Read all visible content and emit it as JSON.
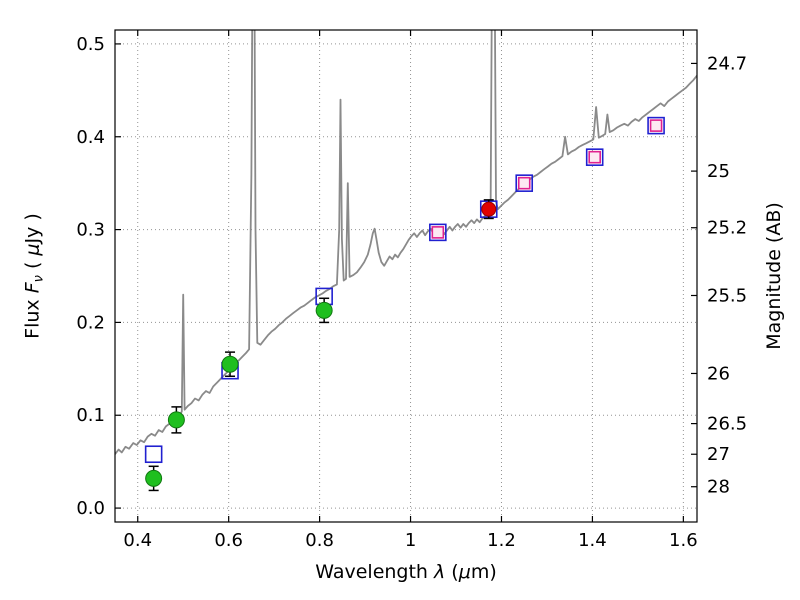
{
  "figure": {
    "background": "#ffffff",
    "xlabel": {
      "p1": "Wavelength  ",
      "lambda": "λ",
      "p2": " (",
      "mu": "μ",
      "p3": "m)"
    },
    "ylabel": {
      "p1": "Flux  ",
      "f": "F",
      "sub": "ν",
      "p2": "  ( ",
      "mu": "μ",
      "p3": "Jy )"
    },
    "y2label": "Magnitude (AB)"
  },
  "chart_data": {
    "type": "line",
    "title": "",
    "xlabel": "Wavelength λ (μm)",
    "ylabel": "Flux Fν ( μJy )",
    "y2label": "Magnitude (AB)",
    "xlim": [
      0.35,
      1.63
    ],
    "ylim": [
      -0.015,
      0.515
    ],
    "grid": true,
    "grid_color": "#888888",
    "frame_color": "#000000",
    "x_ticks": [
      {
        "value": 0.4,
        "label": "0.4"
      },
      {
        "value": 0.6,
        "label": "0.6"
      },
      {
        "value": 0.8,
        "label": "0.8"
      },
      {
        "value": 1.0,
        "label": "1"
      },
      {
        "value": 1.2,
        "label": "1.2"
      },
      {
        "value": 1.4,
        "label": "1.4"
      },
      {
        "value": 1.6,
        "label": "1.6"
      }
    ],
    "y_ticks": [
      {
        "value": 0.0,
        "label": "0.0"
      },
      {
        "value": 0.1,
        "label": "0.1"
      },
      {
        "value": 0.2,
        "label": "0.2"
      },
      {
        "value": 0.3,
        "label": "0.3"
      },
      {
        "value": 0.4,
        "label": "0.4"
      },
      {
        "value": 0.5,
        "label": "0.5"
      }
    ],
    "mag_ticks": [
      {
        "flux": 0.479,
        "label": "24.7"
      },
      {
        "flux": 0.363,
        "label": "25"
      },
      {
        "flux": 0.302,
        "label": "25.2"
      },
      {
        "flux": 0.229,
        "label": "25.5"
      },
      {
        "flux": 0.145,
        "label": "26"
      },
      {
        "flux": 0.091,
        "label": "26.5"
      },
      {
        "flux": 0.058,
        "label": "27"
      },
      {
        "flux": 0.023,
        "label": "28"
      }
    ],
    "series": [
      {
        "name": "model-spectrum",
        "type": "line",
        "color": "#8a8a8a",
        "width": 1.8,
        "points": [
          [
            0.35,
            0.058
          ],
          [
            0.358,
            0.063
          ],
          [
            0.365,
            0.06
          ],
          [
            0.373,
            0.066
          ],
          [
            0.381,
            0.064
          ],
          [
            0.39,
            0.07
          ],
          [
            0.398,
            0.068
          ],
          [
            0.406,
            0.073
          ],
          [
            0.414,
            0.071
          ],
          [
            0.422,
            0.077
          ],
          [
            0.43,
            0.08
          ],
          [
            0.438,
            0.078
          ],
          [
            0.446,
            0.084
          ],
          [
            0.454,
            0.082
          ],
          [
            0.462,
            0.088
          ],
          [
            0.47,
            0.091
          ],
          [
            0.478,
            0.089
          ],
          [
            0.486,
            0.096
          ],
          [
            0.492,
            0.1
          ],
          [
            0.497,
            0.104
          ],
          [
            0.5,
            0.23
          ],
          [
            0.503,
            0.106
          ],
          [
            0.51,
            0.11
          ],
          [
            0.518,
            0.113
          ],
          [
            0.526,
            0.118
          ],
          [
            0.534,
            0.116
          ],
          [
            0.542,
            0.122
          ],
          [
            0.55,
            0.126
          ],
          [
            0.558,
            0.124
          ],
          [
            0.566,
            0.131
          ],
          [
            0.574,
            0.135
          ],
          [
            0.582,
            0.139
          ],
          [
            0.59,
            0.143
          ],
          [
            0.598,
            0.147
          ],
          [
            0.606,
            0.152
          ],
          [
            0.614,
            0.156
          ],
          [
            0.622,
            0.159
          ],
          [
            0.63,
            0.163
          ],
          [
            0.638,
            0.167
          ],
          [
            0.645,
            0.171
          ],
          [
            0.65,
            0.36
          ],
          [
            0.653,
            0.64
          ],
          [
            0.656,
            0.65
          ],
          [
            0.659,
            0.3
          ],
          [
            0.663,
            0.178
          ],
          [
            0.67,
            0.176
          ],
          [
            0.678,
            0.181
          ],
          [
            0.686,
            0.186
          ],
          [
            0.694,
            0.19
          ],
          [
            0.702,
            0.193
          ],
          [
            0.71,
            0.197
          ],
          [
            0.718,
            0.2
          ],
          [
            0.726,
            0.204
          ],
          [
            0.734,
            0.207
          ],
          [
            0.742,
            0.21
          ],
          [
            0.75,
            0.213
          ],
          [
            0.758,
            0.216
          ],
          [
            0.766,
            0.218
          ],
          [
            0.774,
            0.221
          ],
          [
            0.782,
            0.224
          ],
          [
            0.79,
            0.227
          ],
          [
            0.798,
            0.229
          ],
          [
            0.806,
            0.231
          ],
          [
            0.814,
            0.234
          ],
          [
            0.822,
            0.236
          ],
          [
            0.83,
            0.239
          ],
          [
            0.838,
            0.241
          ],
          [
            0.843,
            0.3
          ],
          [
            0.846,
            0.44
          ],
          [
            0.849,
            0.29
          ],
          [
            0.853,
            0.245
          ],
          [
            0.858,
            0.247
          ],
          [
            0.862,
            0.35
          ],
          [
            0.866,
            0.249
          ],
          [
            0.874,
            0.251
          ],
          [
            0.882,
            0.254
          ],
          [
            0.89,
            0.259
          ],
          [
            0.898,
            0.265
          ],
          [
            0.906,
            0.273
          ],
          [
            0.912,
            0.284
          ],
          [
            0.917,
            0.296
          ],
          [
            0.921,
            0.301
          ],
          [
            0.925,
            0.29
          ],
          [
            0.93,
            0.275
          ],
          [
            0.936,
            0.265
          ],
          [
            0.942,
            0.261
          ],
          [
            0.948,
            0.266
          ],
          [
            0.954,
            0.271
          ],
          [
            0.96,
            0.268
          ],
          [
            0.966,
            0.273
          ],
          [
            0.972,
            0.27
          ],
          [
            0.978,
            0.275
          ],
          [
            0.984,
            0.279
          ],
          [
            0.99,
            0.284
          ],
          [
            0.996,
            0.289
          ],
          [
            1.002,
            0.293
          ],
          [
            1.008,
            0.296
          ],
          [
            1.014,
            0.292
          ],
          [
            1.02,
            0.296
          ],
          [
            1.026,
            0.299
          ],
          [
            1.032,
            0.294
          ],
          [
            1.038,
            0.298
          ],
          [
            1.044,
            0.301
          ],
          [
            1.05,
            0.296
          ],
          [
            1.056,
            0.292
          ],
          [
            1.062,
            0.297
          ],
          [
            1.068,
            0.3
          ],
          [
            1.074,
            0.295
          ],
          [
            1.08,
            0.299
          ],
          [
            1.086,
            0.303
          ],
          [
            1.092,
            0.299
          ],
          [
            1.098,
            0.303
          ],
          [
            1.104,
            0.306
          ],
          [
            1.11,
            0.302
          ],
          [
            1.116,
            0.306
          ],
          [
            1.122,
            0.303
          ],
          [
            1.128,
            0.307
          ],
          [
            1.134,
            0.31
          ],
          [
            1.14,
            0.307
          ],
          [
            1.146,
            0.311
          ],
          [
            1.152,
            0.308
          ],
          [
            1.158,
            0.312
          ],
          [
            1.164,
            0.315
          ],
          [
            1.17,
            0.317
          ],
          [
            1.176,
            0.32
          ],
          [
            1.18,
            0.65
          ],
          [
            1.184,
            0.66
          ],
          [
            1.188,
            0.33
          ],
          [
            1.192,
            0.322
          ],
          [
            1.198,
            0.325
          ],
          [
            1.206,
            0.329
          ],
          [
            1.214,
            0.332
          ],
          [
            1.222,
            0.336
          ],
          [
            1.23,
            0.34
          ],
          [
            1.238,
            0.344
          ],
          [
            1.246,
            0.347
          ],
          [
            1.254,
            0.351
          ],
          [
            1.262,
            0.354
          ],
          [
            1.27,
            0.357
          ],
          [
            1.278,
            0.359
          ],
          [
            1.286,
            0.362
          ],
          [
            1.294,
            0.365
          ],
          [
            1.302,
            0.368
          ],
          [
            1.31,
            0.371
          ],
          [
            1.318,
            0.373
          ],
          [
            1.326,
            0.376
          ],
          [
            1.334,
            0.379
          ],
          [
            1.34,
            0.4
          ],
          [
            1.346,
            0.381
          ],
          [
            1.354,
            0.384
          ],
          [
            1.362,
            0.386
          ],
          [
            1.37,
            0.389
          ],
          [
            1.378,
            0.391
          ],
          [
            1.386,
            0.393
          ],
          [
            1.394,
            0.395
          ],
          [
            1.402,
            0.397
          ],
          [
            1.408,
            0.432
          ],
          [
            1.414,
            0.399
          ],
          [
            1.422,
            0.401
          ],
          [
            1.428,
            0.403
          ],
          [
            1.433,
            0.424
          ],
          [
            1.438,
            0.405
          ],
          [
            1.446,
            0.407
          ],
          [
            1.454,
            0.41
          ],
          [
            1.462,
            0.412
          ],
          [
            1.47,
            0.414
          ],
          [
            1.478,
            0.412
          ],
          [
            1.486,
            0.416
          ],
          [
            1.494,
            0.419
          ],
          [
            1.502,
            0.417
          ],
          [
            1.51,
            0.421
          ],
          [
            1.518,
            0.424
          ],
          [
            1.526,
            0.427
          ],
          [
            1.534,
            0.43
          ],
          [
            1.542,
            0.433
          ],
          [
            1.55,
            0.436
          ],
          [
            1.558,
            0.433
          ],
          [
            1.566,
            0.438
          ],
          [
            1.574,
            0.441
          ],
          [
            1.582,
            0.444
          ],
          [
            1.59,
            0.447
          ],
          [
            1.598,
            0.45
          ],
          [
            1.606,
            0.453
          ],
          [
            1.614,
            0.457
          ],
          [
            1.622,
            0.461
          ],
          [
            1.63,
            0.466
          ]
        ]
      },
      {
        "name": "model-photometry-squares",
        "type": "scatter",
        "marker": "square-open",
        "color": "#2020d0",
        "size": 16,
        "line_width": 1.6,
        "points": [
          [
            0.435,
            0.058
          ],
          [
            0.603,
            0.148
          ],
          [
            0.81,
            0.228
          ],
          [
            1.06,
            0.297
          ],
          [
            1.172,
            0.322
          ],
          [
            1.25,
            0.35
          ],
          [
            1.405,
            0.378
          ],
          [
            1.54,
            0.412
          ]
        ]
      },
      {
        "name": "nir-photometry-squares",
        "type": "scatter",
        "marker": "square-open",
        "color": "#e0218f",
        "fill": "#fde8f2",
        "size": 11,
        "line_width": 1.6,
        "points": [
          [
            1.06,
            0.297
          ],
          [
            1.25,
            0.35
          ],
          [
            1.405,
            0.378
          ],
          [
            1.54,
            0.412
          ]
        ]
      },
      {
        "name": "optical-photometry-circles",
        "type": "scatter",
        "marker": "circle",
        "color": "#1fbf1f",
        "edge": "#117711",
        "size": 8,
        "error_color": "#000000",
        "points": [
          [
            0.435,
            0.032,
            0.013
          ],
          [
            0.485,
            0.095,
            0.014
          ],
          [
            0.603,
            0.155,
            0.013
          ],
          [
            0.81,
            0.213,
            0.013
          ]
        ]
      },
      {
        "name": "red-photometry-circle",
        "type": "scatter",
        "marker": "circle",
        "color": "#e00000",
        "edge": "#990000",
        "size": 7,
        "error_color": "#000000",
        "points": [
          [
            1.172,
            0.322,
            0.01
          ]
        ]
      }
    ]
  }
}
